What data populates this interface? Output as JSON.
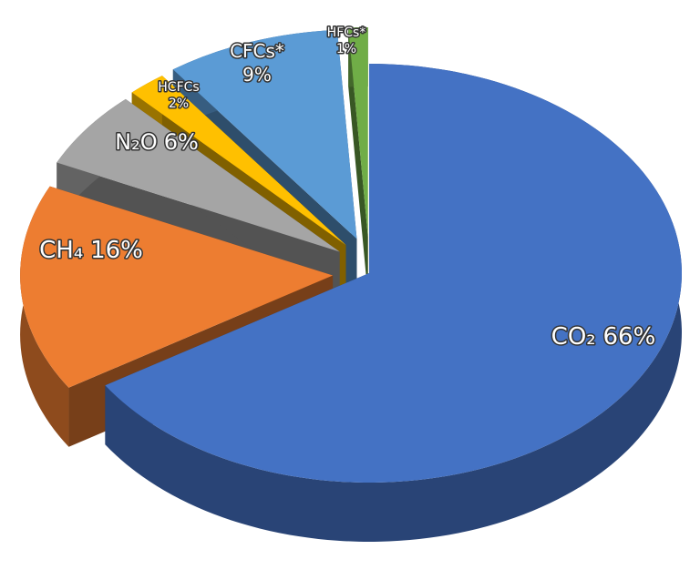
{
  "chart_data": {
    "type": "pie",
    "categories": [
      "CO₂",
      "CH₄",
      "N₂O",
      "HCFCs",
      "CFCs*",
      "HFCs*"
    ],
    "values": [
      66,
      16,
      6,
      2,
      9,
      1
    ],
    "value_labels": [
      "66%",
      "16%",
      "6%",
      "2%",
      "9%",
      "1%"
    ],
    "colors": [
      "#4472c4",
      "#ed7d31",
      "#a5a5a5",
      "#ffc000",
      "#5b9bd5",
      "#70ad47"
    ]
  }
}
